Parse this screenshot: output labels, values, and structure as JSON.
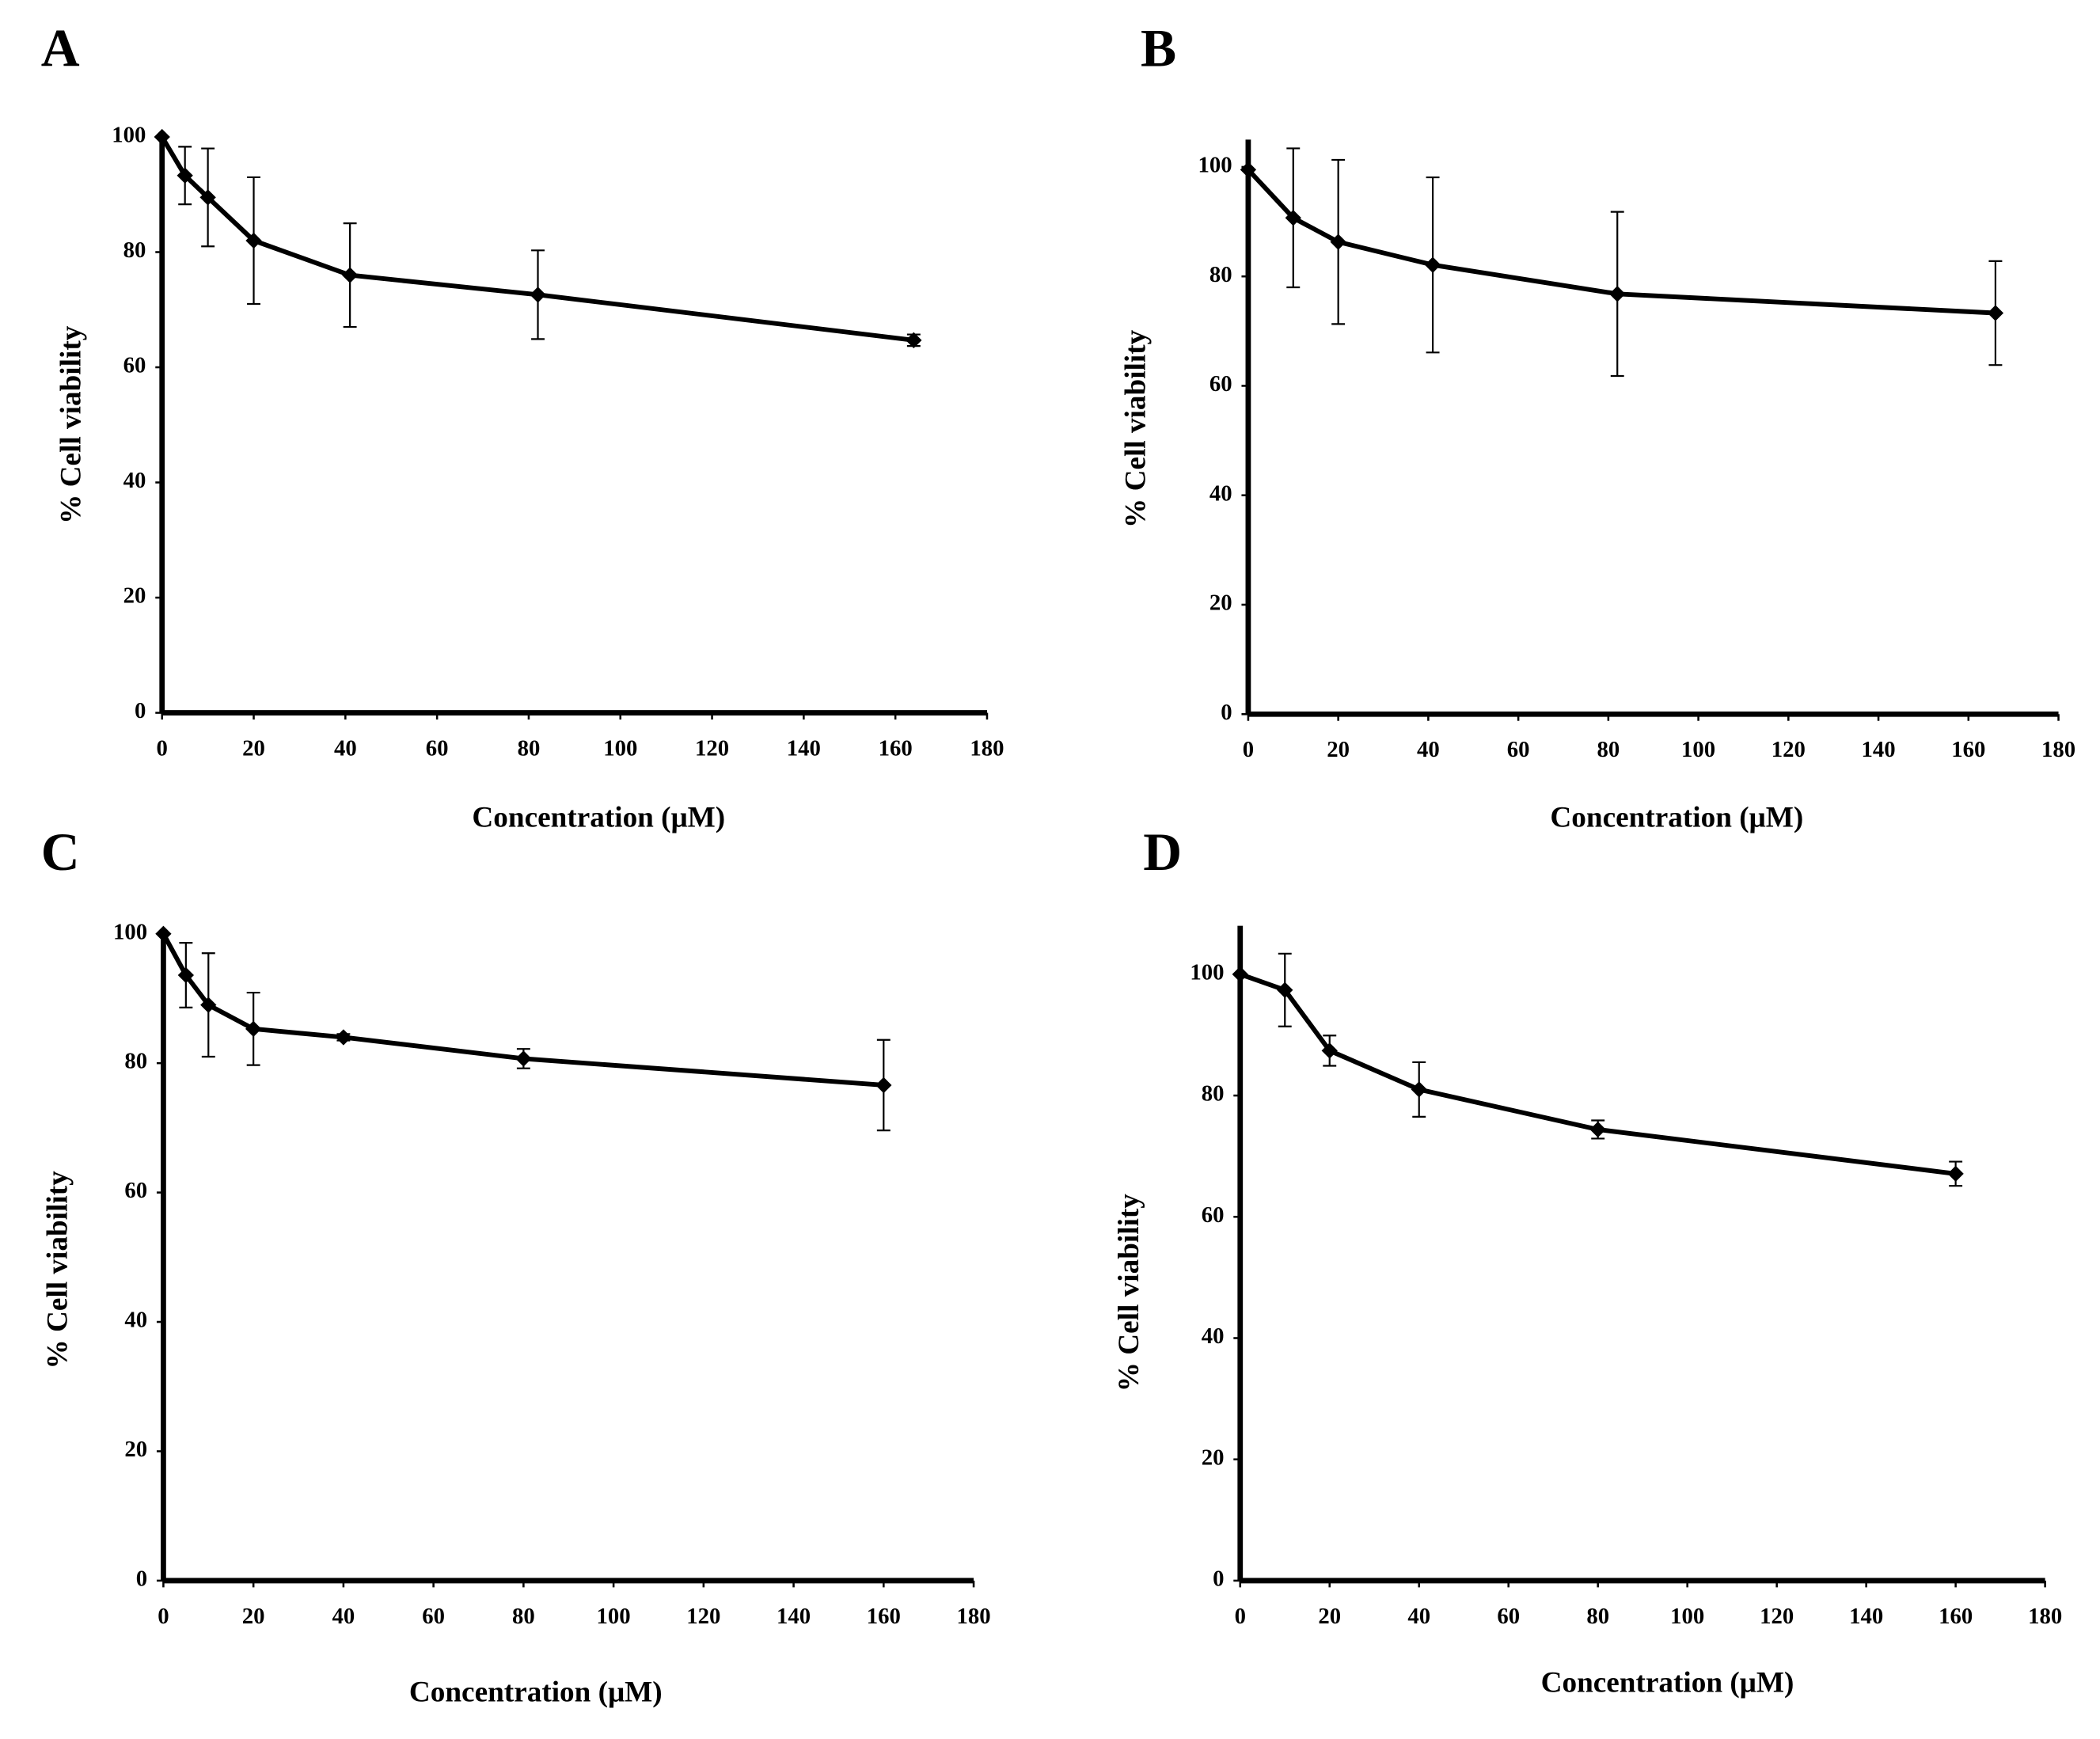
{
  "chart_data": [
    {
      "type": "line",
      "panel_label": "A",
      "x_label": "Concentration (μM)",
      "y_label": "% Cell viability",
      "x": [
        0,
        5,
        10,
        20,
        41,
        82,
        164
      ],
      "series": [
        {
          "color": "#000000",
          "values": [
            100,
            93.3,
            89.5,
            82,
            76,
            72.6,
            64.7
          ],
          "errors": [
            0,
            5,
            8.5,
            11,
            9,
            7.7,
            1
          ]
        }
      ],
      "xlim": [
        0,
        180
      ],
      "xticks": [
        0,
        20,
        40,
        60,
        80,
        100,
        120,
        140,
        160,
        180
      ],
      "ylim": [
        0,
        100
      ],
      "yticks": [
        0,
        20,
        40,
        60,
        80,
        100
      ]
    },
    {
      "type": "line",
      "panel_label": "B",
      "x_label": "Concentration (μM)",
      "y_label": "% Cell viability",
      "x": [
        0,
        10,
        20,
        41,
        82,
        166
      ],
      "series": [
        {
          "color": "#000000",
          "values": [
            99.5,
            90.7,
            86.3,
            82.1,
            76.8,
            73.3
          ],
          "errors": [
            0,
            12.7,
            15,
            16,
            15,
            9.5
          ]
        }
      ],
      "xlim": [
        0,
        180
      ],
      "xticks": [
        0,
        20,
        40,
        60,
        80,
        100,
        120,
        140,
        160,
        180
      ],
      "ylim": [
        0,
        105
      ],
      "yticks": [
        0,
        20,
        40,
        60,
        80,
        100
      ]
    },
    {
      "type": "line",
      "panel_label": "C",
      "x_label": "Concentration  (μM)",
      "y_label": "% Cell viability",
      "x": [
        0,
        5,
        10,
        20,
        40,
        80,
        160
      ],
      "series": [
        {
          "color": "#000000",
          "values": [
            100,
            93.6,
            89,
            85.3,
            84,
            80.7,
            76.6
          ],
          "errors": [
            0,
            5,
            8,
            5.6,
            0.5,
            1.5,
            7
          ]
        }
      ],
      "xlim": [
        0,
        180
      ],
      "xticks": [
        0,
        20,
        40,
        60,
        80,
        100,
        120,
        140,
        160,
        180
      ],
      "ylim": [
        0,
        100
      ],
      "yticks": [
        0,
        20,
        40,
        60,
        80,
        100
      ]
    },
    {
      "type": "line",
      "panel_label": "D",
      "x_label": "Concentration (μM)",
      "y_label": "% Cell viability",
      "x": [
        0,
        10,
        20,
        40,
        80,
        160
      ],
      "series": [
        {
          "color": "#000000",
          "values": [
            100,
            97.4,
            87.4,
            81,
            74.4,
            67.1
          ],
          "errors": [
            0,
            6,
            2.5,
            4.5,
            1.5,
            2
          ]
        }
      ],
      "xlim": [
        0,
        180
      ],
      "xticks": [
        0,
        20,
        40,
        60,
        80,
        100,
        120,
        140,
        160,
        180
      ],
      "ylim": [
        0,
        108
      ],
      "yticks": [
        0,
        20,
        40,
        60,
        80,
        100
      ]
    }
  ]
}
